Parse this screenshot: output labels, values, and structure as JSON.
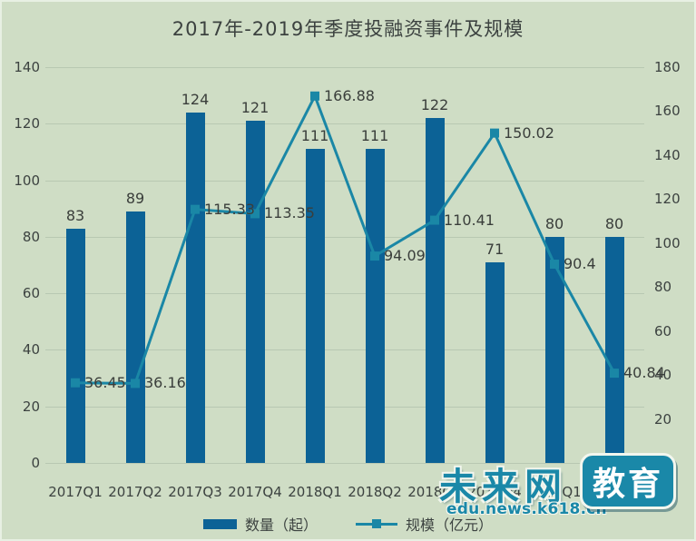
{
  "title": "2017年-2019年季度投融资事件及规模",
  "colors": {
    "background": "#cfddc5",
    "bar": "#0c6296",
    "line": "#1a87a6",
    "grid": "#b8c8b2",
    "text": "#3c4240",
    "watermark": "#1a88a8"
  },
  "chart_data": {
    "type": "bar",
    "subtype": "bar-line-combo",
    "title": "2017年-2019年季度投融资事件及规模",
    "categories": [
      "2017Q1",
      "2017Q2",
      "2017Q3",
      "2017Q4",
      "2018Q1",
      "2018Q2",
      "2018Q3",
      "2018Q4",
      "2019Q1",
      "2019Q2"
    ],
    "series": [
      {
        "name": "数量（起）",
        "type": "bar",
        "axis": "left",
        "color": "#0c6296",
        "values": [
          83,
          89,
          124,
          121,
          111,
          111,
          122,
          71,
          80,
          80
        ]
      },
      {
        "name": "规模（亿元）",
        "type": "line",
        "axis": "right",
        "color": "#1a87a6",
        "marker": "square",
        "values": [
          36.45,
          36.16,
          115.33,
          113.35,
          166.88,
          94.09,
          110.41,
          150.02,
          90.4,
          40.84
        ]
      }
    ],
    "left_axis": {
      "min": 0,
      "max": 140,
      "step": 20
    },
    "right_axis": {
      "min": 0,
      "max": 180,
      "step": 20
    },
    "xlabel": "",
    "ylabel": "",
    "grid": "horizontal",
    "legend_position": "bottom",
    "data_labels": true
  },
  "legend": {
    "bar_label": "数量（起）",
    "line_label": "规模（亿元）"
  },
  "watermark": {
    "brand": "未来网",
    "badge": "教育",
    "url": "edu.news.k618.cn"
  }
}
